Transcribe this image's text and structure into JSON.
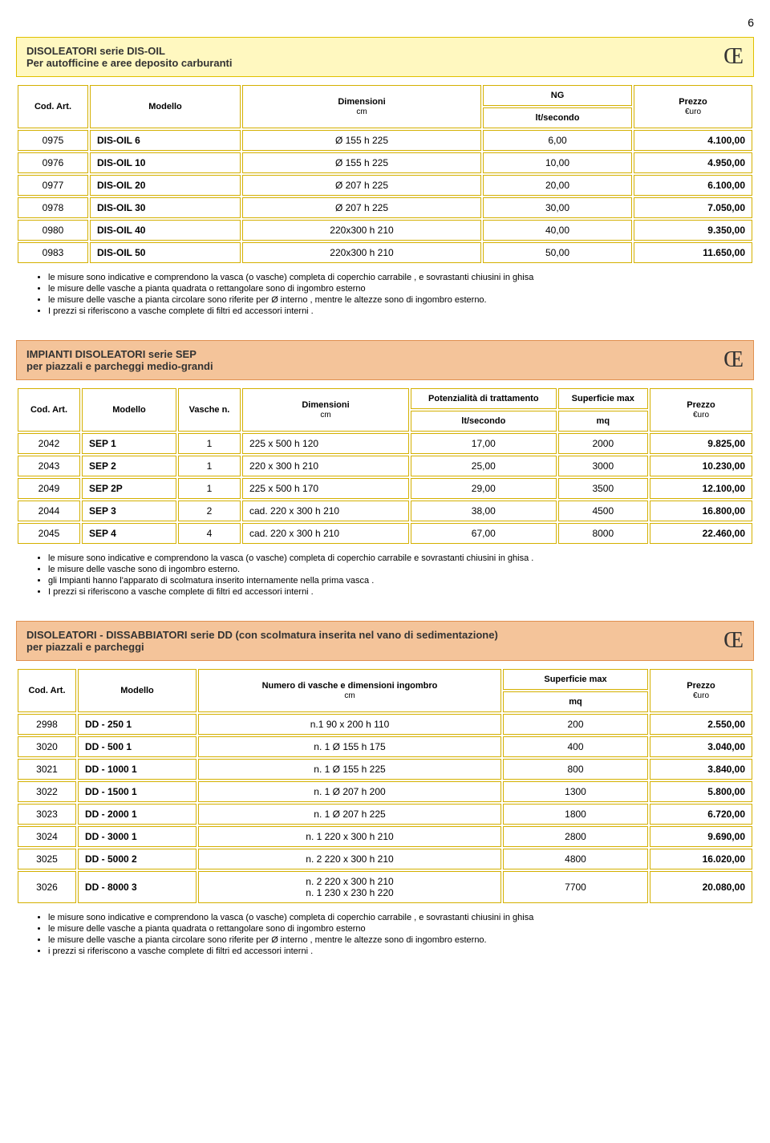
{
  "page_number": "6",
  "section1": {
    "title_line1": "DISOLEATORI serie DIS-OIL",
    "title_line2": "Per autofficine e aree deposito carburanti",
    "ce": "Œ",
    "headers": {
      "cod": "Cod. Art.",
      "modello": "Modello",
      "dimensioni": "Dimensioni",
      "dimensioni_sub": "cm",
      "ng": "NG",
      "ng_sub": "lt/secondo",
      "prezzo": "Prezzo",
      "prezzo_sub": "€uro"
    },
    "rows": [
      {
        "cod": "0975",
        "model": "DIS-OIL  6",
        "dim": "Ø 155  h 225",
        "ng": "6,00",
        "price": "4.100,00"
      },
      {
        "cod": "0976",
        "model": "DIS-OIL 10",
        "dim": "Ø 155  h 225",
        "ng": "10,00",
        "price": "4.950,00"
      },
      {
        "cod": "0977",
        "model": "DIS-OIL 20",
        "dim": "Ø 207  h 225",
        "ng": "20,00",
        "price": "6.100,00"
      },
      {
        "cod": "0978",
        "model": "DIS-OIL 30",
        "dim": "Ø 207  h 225",
        "ng": "30,00",
        "price": "7.050,00"
      },
      {
        "cod": "0980",
        "model": "DIS-OIL 40",
        "dim": "220x300 h 210",
        "ng": "40,00",
        "price": "9.350,00"
      },
      {
        "cod": "0983",
        "model": "DIS-OIL 50",
        "dim": "220x300 h 210",
        "ng": "50,00",
        "price": "11.650,00"
      }
    ],
    "notes": [
      "le misure sono indicative e comprendono la vasca (o vasche) completa di coperchio carrabile , e sovrastanti chiusini in ghisa",
      "le misure delle vasche a pianta quadrata o rettangolare sono di ingombro esterno",
      "le misure delle vasche a pianta circolare sono riferite per Ø interno , mentre le altezze sono di ingombro esterno.",
      "I prezzi si riferiscono a vasche complete di filtri ed accessori interni ."
    ]
  },
  "section2": {
    "title_line1": "IMPIANTI DISOLEATORI serie SEP",
    "title_line2": "per piazzali e parcheggi medio-grandi",
    "ce": "Œ",
    "headers": {
      "cod": "Cod. Art.",
      "modello": "Modello",
      "vasche": "Vasche n.",
      "dimensioni": "Dimensioni",
      "dimensioni_sub": "cm",
      "pot": "Potenzialità di trattamento",
      "pot_sub": "lt/secondo",
      "sup": "Superficie max",
      "sup_sub": "mq",
      "prezzo": "Prezzo",
      "prezzo_sub": "€uro"
    },
    "rows": [
      {
        "cod": "2042",
        "model": "SEP  1",
        "vasche": "1",
        "dim": "225 x 500  h 120",
        "pot": "17,00",
        "sup": "2000",
        "price": "9.825,00"
      },
      {
        "cod": "2043",
        "model": "SEP  2",
        "vasche": "1",
        "dim": "220 x 300  h 210",
        "pot": "25,00",
        "sup": "3000",
        "price": "10.230,00"
      },
      {
        "cod": "2049",
        "model": "SEP 2P",
        "vasche": "1",
        "dim": "225 x 500 h 170",
        "pot": "29,00",
        "sup": "3500",
        "price": "12.100,00"
      },
      {
        "cod": "2044",
        "model": "SEP  3",
        "vasche": "2",
        "dim": "cad.  220 x 300 h 210",
        "pot": "38,00",
        "sup": "4500",
        "price": "16.800,00"
      },
      {
        "cod": "2045",
        "model": "SEP  4",
        "vasche": "4",
        "dim": "cad.  220 x 300 h 210",
        "pot": "67,00",
        "sup": "8000",
        "price": "22.460,00"
      }
    ],
    "notes": [
      "le misure sono indicative e comprendono la vasca (o vasche) completa di coperchio carrabile e sovrastanti chiusini in ghisa .",
      "le misure delle vasche sono di ingombro esterno.",
      "gli Impianti hanno l'apparato di scolmatura inserito internamente nella prima vasca .",
      "I prezzi si riferiscono a vasche complete di filtri ed accessori interni ."
    ]
  },
  "section3": {
    "title_line1": "DISOLEATORI - DISSABBIATORI serie  DD (con scolmatura inserita nel vano di sedimentazione)",
    "title_line2": "per piazzali e parcheggi",
    "ce": "Œ",
    "headers": {
      "cod": "Cod. Art.",
      "modello": "Modello",
      "num": "Numero di vasche e dimensioni ingombro",
      "num_sub": "cm",
      "sup": "Superficie max",
      "sup_sub": "mq",
      "prezzo": "Prezzo",
      "prezzo_sub": "€uro"
    },
    "rows": [
      {
        "cod": "2998",
        "model": "DD -  250  1",
        "dim": "n.1    90 x 200 h 110",
        "sup": "200",
        "price": "2.550,00"
      },
      {
        "cod": "3020",
        "model": "DD -  500  1",
        "dim": "n. 1    Ø 155  h 175",
        "sup": "400",
        "price": "3.040,00"
      },
      {
        "cod": "3021",
        "model": "DD - 1000  1",
        "dim": "n. 1    Ø 155  h 225",
        "sup": "800",
        "price": "3.840,00"
      },
      {
        "cod": "3022",
        "model": "DD - 1500  1",
        "dim": "n. 1    Ø 207  h 200",
        "sup": "1300",
        "price": "5.800,00"
      },
      {
        "cod": "3023",
        "model": "DD - 2000  1",
        "dim": "n. 1    Ø 207  h 225",
        "sup": "1800",
        "price": "6.720,00"
      },
      {
        "cod": "3024",
        "model": "DD - 3000  1",
        "dim": "n. 1    220 x 300  h 210",
        "sup": "2800",
        "price": "9.690,00"
      },
      {
        "cod": "3025",
        "model": "DD - 5000  2",
        "dim": "n. 2    220 x 300  h 210",
        "sup": "4800",
        "price": "16.020,00"
      },
      {
        "cod": "3026",
        "model": "DD - 8000  3",
        "dim": "n. 2    220 x 300  h 210\nn. 1    230 x 230  h 220",
        "sup": "7700",
        "price": "20.080,00"
      }
    ],
    "notes": [
      "le misure sono indicative e comprendono la vasca (o vasche) completa di coperchio carrabile , e sovrastanti chiusini in ghisa",
      "le misure delle vasche a pianta quadrata o rettangolare sono di ingombro esterno",
      "le misure delle vasche a pianta circolare sono riferite per Ø interno , mentre le altezze sono di ingombro esterno.",
      "i prezzi si riferiscono a vasche complete di filtri ed accessori interni ."
    ]
  }
}
